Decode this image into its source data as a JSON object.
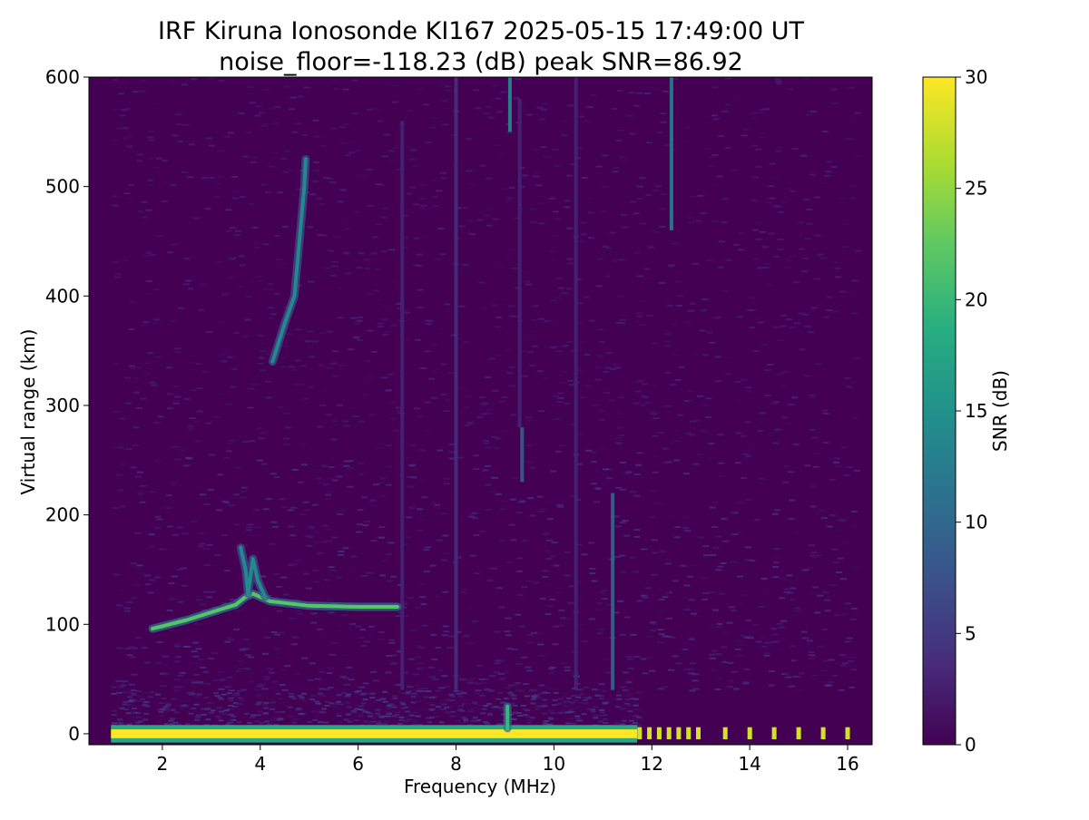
{
  "chart_data": {
    "type": "heatmap",
    "title": "IRF Kiruna Ionosonde KI167 2025-05-15 17:49:00  UT",
    "subtitle": "noise_floor=-118.23 (dB) peak SNR=86.92",
    "xlabel": "Frequency (MHz)",
    "ylabel": "Virtual range (km)",
    "colorbar_label": "SNR (dB)",
    "colormap": "viridis",
    "xlim": [
      0.5,
      16.5
    ],
    "ylim": [
      -10,
      600
    ],
    "clim": [
      0,
      30
    ],
    "x_ticks": [
      2,
      4,
      6,
      8,
      10,
      12,
      14,
      16
    ],
    "y_ticks": [
      0,
      100,
      200,
      300,
      400,
      500,
      600
    ],
    "colorbar_ticks": [
      0,
      5,
      10,
      15,
      20,
      25,
      30
    ],
    "noise_floor_db": -118.23,
    "peak_snr": 86.92,
    "grid": false,
    "traces": [
      {
        "name": "ground echo band",
        "points": [
          [
            0.95,
            0
          ],
          [
            11.7,
            0
          ]
        ],
        "snr": 30
      },
      {
        "name": "E-layer trace",
        "points": [
          [
            1.8,
            96
          ],
          [
            2.5,
            104
          ],
          [
            3.0,
            111
          ],
          [
            3.5,
            118
          ],
          [
            3.7,
            125
          ],
          [
            3.85,
            128
          ],
          [
            4.2,
            121
          ],
          [
            5.0,
            117
          ],
          [
            6.0,
            116
          ],
          [
            6.8,
            116
          ]
        ],
        "snr": 22
      },
      {
        "name": "E-layer cusp",
        "points": [
          [
            3.6,
            170
          ],
          [
            3.7,
            150
          ],
          [
            3.75,
            128
          ],
          [
            3.85,
            160
          ],
          [
            3.95,
            140
          ],
          [
            4.1,
            125
          ]
        ],
        "snr": 14
      },
      {
        "name": "multihop trace",
        "points": [
          [
            4.25,
            340
          ],
          [
            4.5,
            375
          ],
          [
            4.7,
            400
          ],
          [
            4.8,
            450
          ],
          [
            4.9,
            500
          ],
          [
            4.93,
            525
          ]
        ],
        "snr": 14
      },
      {
        "name": "ground echo near 9.1 MHz",
        "points": [
          [
            9.05,
            5
          ],
          [
            9.05,
            25
          ]
        ],
        "snr": 20
      }
    ],
    "interference_lines": [
      {
        "freq": 9.1,
        "range": [
          550,
          600
        ],
        "snr": 14
      },
      {
        "freq": 12.4,
        "range": [
          460,
          600
        ],
        "snr": 13
      },
      {
        "freq": 11.2,
        "range": [
          40,
          220
        ],
        "snr": 10
      },
      {
        "freq": 8.0,
        "range": [
          40,
          600
        ],
        "snr": 4
      },
      {
        "freq": 9.35,
        "range": [
          230,
          280
        ],
        "snr": 9
      },
      {
        "freq": 9.3,
        "range": [
          280,
          580
        ],
        "snr": 3
      },
      {
        "freq": 6.9,
        "range": [
          40,
          560
        ],
        "snr": 3
      },
      {
        "freq": 10.45,
        "range": [
          40,
          600
        ],
        "snr": 3
      }
    ],
    "discrete_pulses": [
      {
        "freq": 11.75,
        "snr": 28
      },
      {
        "freq": 11.95,
        "snr": 28
      },
      {
        "freq": 12.15,
        "snr": 28
      },
      {
        "freq": 12.35,
        "snr": 28
      },
      {
        "freq": 12.55,
        "snr": 28
      },
      {
        "freq": 12.75,
        "snr": 28
      },
      {
        "freq": 12.95,
        "snr": 28
      },
      {
        "freq": 13.5,
        "snr": 28
      },
      {
        "freq": 14.0,
        "snr": 28
      },
      {
        "freq": 14.5,
        "snr": 28
      },
      {
        "freq": 15.0,
        "snr": 28
      },
      {
        "freq": 15.5,
        "snr": 28
      },
      {
        "freq": 16.0,
        "snr": 28
      }
    ]
  }
}
